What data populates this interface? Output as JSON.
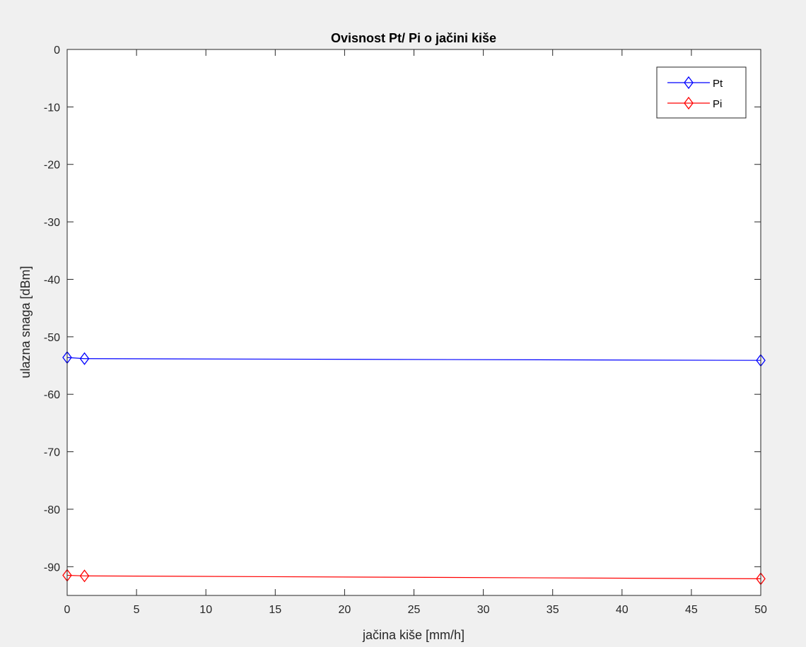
{
  "figure": {
    "background": "#f0f0f0",
    "axes_background": "#ffffff",
    "axis_color": "#262626"
  },
  "chart_data": {
    "type": "line",
    "title": "Ovisnost Pt/ Pi o jačini kiše",
    "xlabel": "jačina kiše [mm/h]",
    "ylabel": "ulazna snaga [dBm]",
    "xlim": [
      0,
      50
    ],
    "ylim": [
      -95,
      0
    ],
    "xticks": [
      0,
      5,
      10,
      15,
      20,
      25,
      30,
      35,
      40,
      45,
      50
    ],
    "yticks": [
      0,
      -10,
      -20,
      -30,
      -40,
      -50,
      -60,
      -70,
      -80,
      -90
    ],
    "grid": false,
    "legend_location": "top-right",
    "series": [
      {
        "name": "Pt",
        "color": "#0000ff",
        "marker": "diamond",
        "x": [
          0,
          1.25,
          50
        ],
        "y": [
          -53.6,
          -53.8,
          -54.1
        ]
      },
      {
        "name": "Pi",
        "color": "#ff0000",
        "marker": "diamond",
        "x": [
          0,
          1.25,
          50
        ],
        "y": [
          -91.5,
          -91.6,
          -92.1
        ]
      }
    ]
  }
}
